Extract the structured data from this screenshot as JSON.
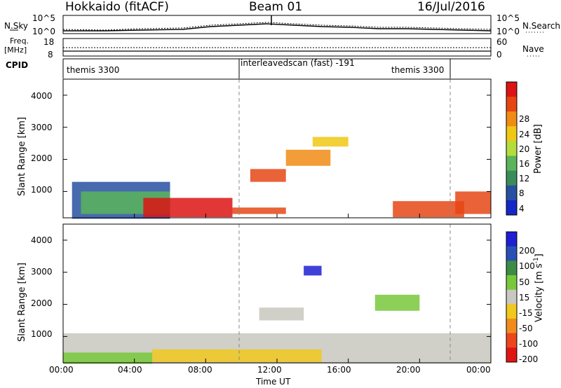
{
  "header": {
    "station": "Hokkaido (fitACF)",
    "beam": "Beam 01",
    "date": "16/Jul/2016"
  },
  "noise_panel": {
    "left_label": "N.Sky",
    "right_label": "N.Search",
    "left_ticks": [
      "10^5",
      "10^0"
    ],
    "right_ticks": [
      "10^5",
      "10^0"
    ]
  },
  "freq_panel": {
    "left_label_top": "Freq.",
    "left_label_bottom": "[MHz]",
    "right_label": "Nave",
    "left_ticks": [
      "18",
      "8"
    ],
    "right_ticks": [
      "60",
      "0"
    ],
    "cpid_label": "CPID"
  },
  "cpid_segments": [
    {
      "label": "themis 3300"
    },
    {
      "label": "interleavedscan (fast) -191"
    },
    {
      "label": "themis 3300"
    }
  ],
  "x_axis": {
    "label": "Time UT",
    "ticks": [
      "00:00",
      "04:00",
      "08:00",
      "12:00",
      "16:00",
      "20:00",
      "00:00"
    ]
  },
  "colors": {
    "power": [
      "#1428c8",
      "#2850a0",
      "#3c8c5a",
      "#5ab45a",
      "#b4dc3c",
      "#f0c814",
      "#f08c14",
      "#e64614",
      "#dc1414"
    ],
    "velocity": [
      "#1e1ed2",
      "#2850b4",
      "#3c8c46",
      "#78c83c",
      "#c8c8c0",
      "#f0c81e",
      "#f08c1e",
      "#eb461e",
      "#e11414"
    ]
  },
  "chart_data": [
    {
      "type": "heatmap",
      "title": "",
      "xlabel": "",
      "ylabel": "Slant Range [km]",
      "y_ticks": [
        "1000",
        "2000",
        "3000",
        "4000"
      ],
      "colorbar_label": "Power [dB]",
      "colorbar_ticks": [
        "4",
        "8",
        "12",
        "16",
        "20",
        "24",
        "28"
      ],
      "regions": [
        {
          "t0": 0.5,
          "t1": 6.0,
          "r0": 150,
          "r1": 1300,
          "level": 1
        },
        {
          "t0": 1.0,
          "t1": 6.0,
          "r0": 300,
          "r1": 1000,
          "level": 3
        },
        {
          "t0": 4.5,
          "t1": 9.5,
          "r0": 200,
          "r1": 800,
          "level": 8
        },
        {
          "t0": 9.5,
          "t1": 12.5,
          "r0": 300,
          "r1": 500,
          "level": 7
        },
        {
          "t0": 10.5,
          "t1": 12.5,
          "r0": 1300,
          "r1": 1700,
          "level": 7
        },
        {
          "t0": 12.5,
          "t1": 15.0,
          "r0": 1800,
          "r1": 2300,
          "level": 6
        },
        {
          "t0": 14.0,
          "t1": 16.0,
          "r0": 2400,
          "r1": 2700,
          "level": 5
        },
        {
          "t0": 18.5,
          "t1": 22.5,
          "r0": 200,
          "r1": 700,
          "level": 7
        },
        {
          "t0": 22.0,
          "t1": 24.0,
          "r0": 300,
          "r1": 1000,
          "level": 7
        }
      ]
    },
    {
      "type": "heatmap",
      "title": "",
      "xlabel": "Time UT",
      "ylabel": "Slant Range [km]",
      "y_ticks": [
        "1000",
        "2000",
        "3000",
        "4000"
      ],
      "colorbar_label": "Velocity [m s^-1]",
      "colorbar_ticks": [
        "200",
        "100",
        "50",
        "15",
        "-15",
        "-50",
        "-100",
        "-200"
      ],
      "regions": [
        {
          "t0": 0.0,
          "t1": 24.0,
          "r0": 150,
          "r1": 1100,
          "level": 4
        },
        {
          "t0": 0.0,
          "t1": 5.0,
          "r0": 150,
          "r1": 500,
          "level": 3
        },
        {
          "t0": 5.0,
          "t1": 14.5,
          "r0": 200,
          "r1": 600,
          "level": 5
        },
        {
          "t0": 11.0,
          "t1": 13.5,
          "r0": 1500,
          "r1": 1900,
          "level": 4
        },
        {
          "t0": 13.5,
          "t1": 14.5,
          "r0": 2900,
          "r1": 3200,
          "level": 0
        },
        {
          "t0": 17.5,
          "t1": 20.0,
          "r0": 1800,
          "r1": 2300,
          "level": 3
        }
      ]
    }
  ]
}
